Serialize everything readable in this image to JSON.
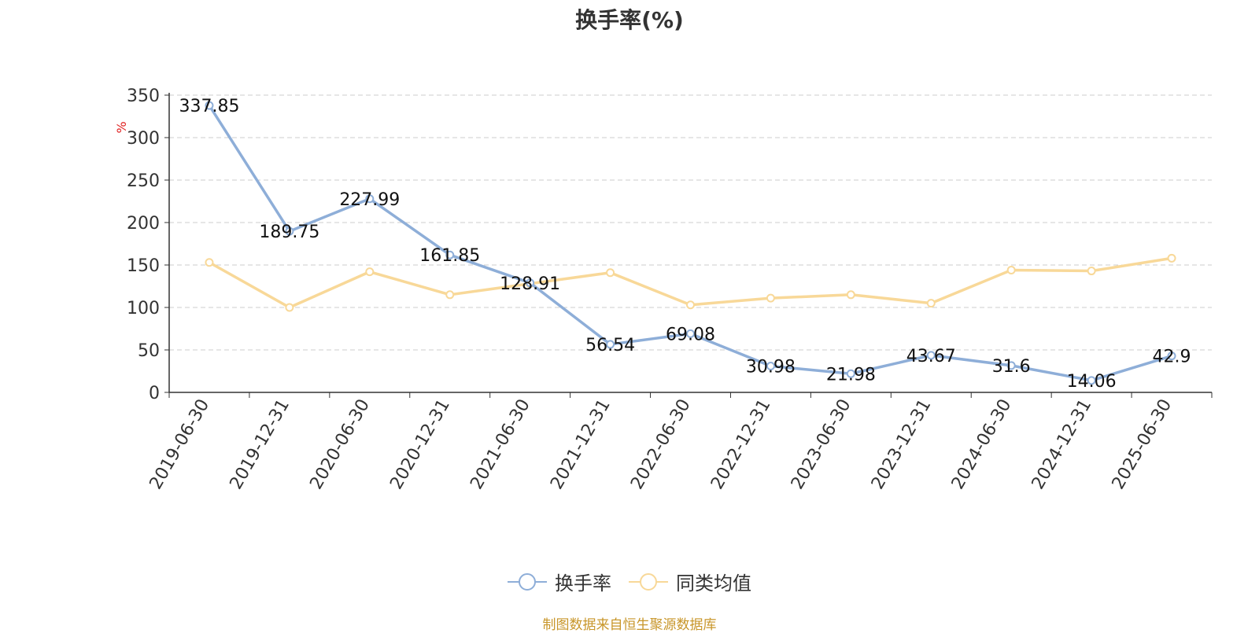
{
  "chart_data": {
    "type": "line",
    "title": "换手率(%)",
    "ylabel": "%",
    "xlabel": "",
    "ylim": [
      0,
      350
    ],
    "yticks": [
      0,
      50,
      100,
      150,
      200,
      250,
      300,
      350
    ],
    "grid": true,
    "legend_position": "bottom",
    "categories": [
      "2019-06-30",
      "2019-12-31",
      "2020-06-30",
      "2020-12-31",
      "2021-06-30",
      "2021-12-31",
      "2022-06-30",
      "2022-12-31",
      "2023-06-30",
      "2023-12-31",
      "2024-06-30",
      "2024-12-31",
      "2025-06-30"
    ],
    "series": [
      {
        "name": "换手率",
        "color": "#8eaed8",
        "values": [
          337.85,
          189.75,
          227.99,
          161.85,
          128.91,
          56.54,
          69.08,
          30.98,
          21.98,
          43.67,
          31.6,
          14.06,
          42.9
        ],
        "show_labels": true
      },
      {
        "name": "同类均值",
        "color": "#f8d898",
        "values": [
          153,
          100,
          142,
          115,
          128,
          141,
          103,
          111,
          115,
          105,
          144,
          143,
          158
        ],
        "show_labels": false
      }
    ]
  },
  "footer": {
    "source": "制图数据来自恒生聚源数据库"
  }
}
